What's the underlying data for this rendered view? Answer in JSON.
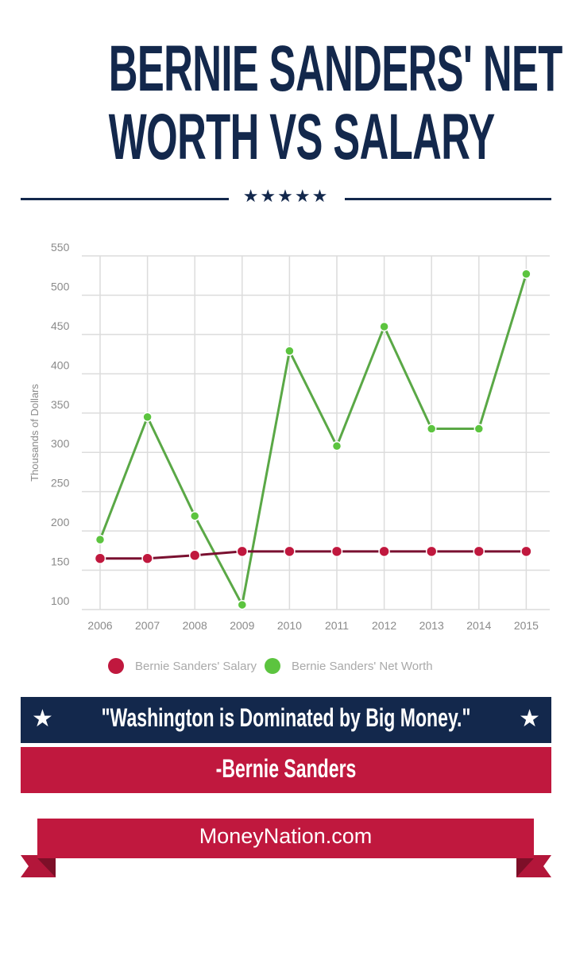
{
  "header": {
    "title_line1": "BERNIE SANDERS' NET",
    "title_line2": "WORTH VS SALARY",
    "divider_stars": "★★★★★"
  },
  "colors": {
    "navy": "#13284c",
    "red": "#c0183e",
    "salary_line": "#c0183e",
    "networth_line": "#5cc43f",
    "grid": "#d9d9d9",
    "axis_text": "#8a8a8a"
  },
  "chart_data": {
    "type": "line",
    "title": "Bernie Sanders' Net Worth vs Salary",
    "xlabel": "",
    "ylabel": "Thousands of Dollars",
    "ylim": [
      100,
      550
    ],
    "yticks": [
      100,
      150,
      200,
      250,
      300,
      350,
      400,
      450,
      500,
      550
    ],
    "grid": true,
    "legend_position": "bottom",
    "categories": [
      "2006",
      "2007",
      "2008",
      "2009",
      "2010",
      "2011",
      "2012",
      "2013",
      "2014",
      "2015"
    ],
    "series": [
      {
        "name": "Bernie Sanders' Salary",
        "color": "#c0183e",
        "values": [
          165,
          165,
          169,
          174,
          174,
          174,
          174,
          174,
          174,
          174
        ]
      },
      {
        "name": "Bernie Sanders' Net Worth",
        "color": "#5cc43f",
        "values": [
          189,
          345,
          219,
          106,
          429,
          308,
          460,
          330,
          330,
          527
        ]
      }
    ]
  },
  "legend": {
    "salary_label": "Bernie Sanders' Salary",
    "networth_label": "Bernie Sanders' Net Worth"
  },
  "quote": {
    "text": "\"Washington is Dominated by Big Money.\"",
    "star": "★",
    "author": "-Bernie Sanders"
  },
  "footer": {
    "site": "MoneyNation.com"
  }
}
